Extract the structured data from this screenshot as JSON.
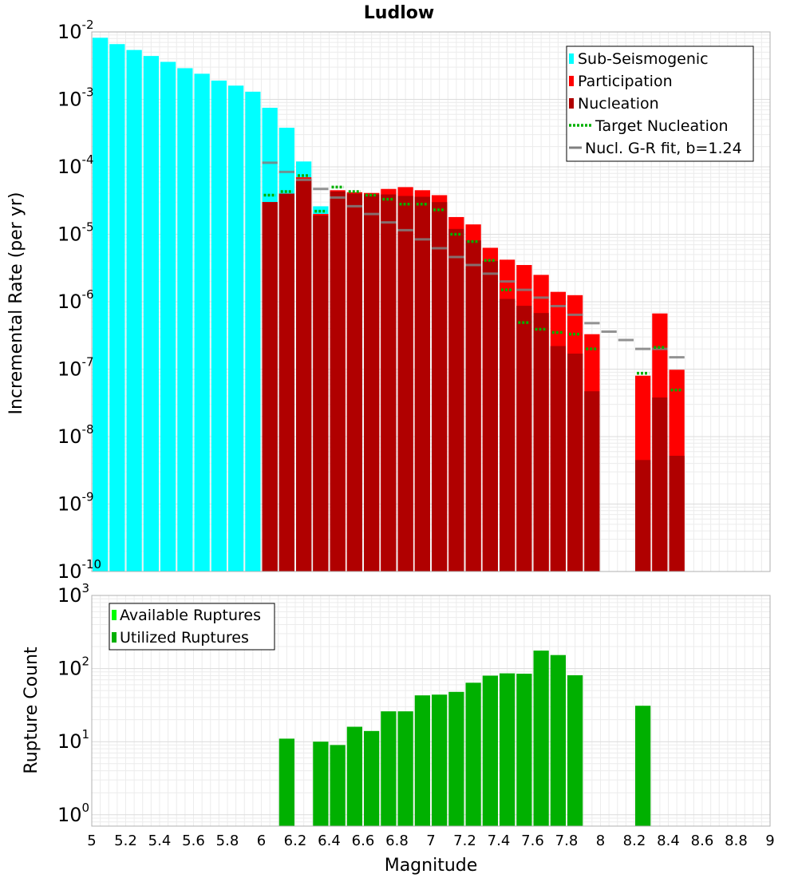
{
  "chart_data": [
    {
      "type": "bar",
      "title": "Ludlow",
      "xlabel": "",
      "ylabel": "Incremental Rate (per yr)",
      "yscale": "log",
      "xlim": [
        5,
        9
      ],
      "ylim": [
        1e-10,
        0.01
      ],
      "y_tick_labels": [
        {
          "base": "10",
          "exp": "-10"
        },
        {
          "base": "10",
          "exp": "-9"
        },
        {
          "base": "10",
          "exp": "-8"
        },
        {
          "base": "10",
          "exp": "-7"
        },
        {
          "base": "10",
          "exp": "-6"
        },
        {
          "base": "10",
          "exp": "-5"
        },
        {
          "base": "10",
          "exp": "-4"
        },
        {
          "base": "10",
          "exp": "-3"
        },
        {
          "base": "10",
          "exp": "-2"
        }
      ],
      "grid": true,
      "legend_position": "top-right",
      "legend": [
        {
          "label": "Sub-Seismogenic",
          "color": "#00ffff",
          "style": "box"
        },
        {
          "label": "Participation",
          "color": "#ff0000",
          "style": "box"
        },
        {
          "label": "Nucleation",
          "color": "#b00000",
          "style": "box"
        },
        {
          "label": "Target Nucleation",
          "color": "#00b000",
          "style": "dotted"
        },
        {
          "label": "Nucl. G-R fit, b=1.24",
          "color": "#808080",
          "style": "line"
        }
      ],
      "sub_seismogenic": {
        "x": [
          5.05,
          5.15,
          5.25,
          5.35,
          5.45,
          5.55,
          5.65,
          5.75,
          5.85,
          5.95,
          6.05,
          6.15,
          6.25,
          6.35
        ],
        "values": [
          0.0082,
          0.0066,
          0.0054,
          0.0044,
          0.0036,
          0.0029,
          0.0024,
          0.0019,
          0.0016,
          0.0013,
          0.00075,
          0.00038,
          0.00012,
          2.6e-05
        ]
      },
      "participation": {
        "x": [
          6.05,
          6.15,
          6.25,
          6.35,
          6.45,
          6.55,
          6.65,
          6.75,
          6.85,
          6.95,
          7.05,
          7.15,
          7.25,
          7.35,
          7.45,
          7.55,
          7.65,
          7.75,
          7.85,
          7.95,
          8.25,
          8.35,
          8.45
        ],
        "values": [
          3e-05,
          4e-05,
          7e-05,
          2e-05,
          4.5e-05,
          4.2e-05,
          4.1e-05,
          4.7e-05,
          5e-05,
          4.5e-05,
          3.8e-05,
          1.8e-05,
          1.4e-05,
          6.3e-06,
          4.2e-06,
          3.5e-06,
          2.5e-06,
          1.4e-06,
          1.25e-06,
          3.3e-07,
          8e-08,
          6.7e-07,
          9.8e-08
        ]
      },
      "nucleation": {
        "x": [
          6.05,
          6.15,
          6.25,
          6.35,
          6.45,
          6.55,
          6.65,
          6.75,
          6.85,
          6.95,
          7.05,
          7.15,
          7.25,
          7.35,
          7.45,
          7.55,
          7.65,
          7.75,
          7.85,
          7.95,
          8.25,
          8.35,
          8.45
        ],
        "values": [
          3e-05,
          4e-05,
          6.5e-05,
          1.9e-05,
          4.3e-05,
          4e-05,
          3.9e-05,
          3.9e-05,
          3.7e-05,
          3.6e-05,
          3e-05,
          1.2e-05,
          8.1e-06,
          4e-06,
          1.1e-06,
          8.7e-07,
          6.8e-07,
          2.2e-07,
          1.7e-07,
          4.7e-08,
          4.5e-09,
          3.8e-08,
          5.2e-09
        ]
      },
      "target_nucleation": {
        "x": [
          6.05,
          6.15,
          6.25,
          6.35,
          6.45,
          6.55,
          6.65,
          6.75,
          6.85,
          6.95,
          7.05,
          7.15,
          7.25,
          7.35,
          7.45,
          7.55,
          7.65,
          7.75,
          7.85,
          7.95,
          8.25,
          8.35,
          8.45
        ],
        "values": [
          3.8e-05,
          4.3e-05,
          7.4e-05,
          2.2e-05,
          5e-05,
          4.3e-05,
          3.8e-05,
          3.3e-05,
          2.8e-05,
          2.8e-05,
          2.3e-05,
          1e-05,
          7.8e-06,
          4.1e-06,
          1.5e-06,
          4.9e-07,
          3.9e-07,
          3.5e-07,
          3.3e-07,
          2e-07,
          8.7e-08,
          2.1e-07,
          4.9e-08
        ]
      },
      "gr_fit": {
        "x": [
          6.05,
          6.15,
          6.25,
          6.35,
          6.45,
          6.55,
          6.65,
          6.75,
          6.85,
          6.95,
          7.05,
          7.15,
          7.25,
          7.35,
          7.45,
          7.55,
          7.65,
          7.75,
          7.85,
          7.95,
          8.05,
          8.15,
          8.25,
          8.35,
          8.45
        ],
        "values": [
          0.000115,
          8.4e-05,
          6.4e-05,
          4.7e-05,
          3.5e-05,
          2.6e-05,
          2e-05,
          1.5e-05,
          1.15e-05,
          8.4e-06,
          6.2e-06,
          4.6e-06,
          3.5e-06,
          2.6e-06,
          2e-06,
          1.5e-06,
          1.15e-06,
          8.6e-07,
          6.4e-07,
          4.8e-07,
          3.6e-07,
          2.7e-07,
          2e-07,
          2e-07,
          1.5e-07
        ]
      }
    },
    {
      "type": "bar",
      "title": "",
      "xlabel": "Magnitude",
      "ylabel": "Rupture Count",
      "yscale": "log",
      "xlim": [
        5,
        9
      ],
      "ylim": [
        0.7,
        1000
      ],
      "x_ticks": [
        "5",
        "5.2",
        "5.4",
        "5.6",
        "5.8",
        "6",
        "6.2",
        "6.4",
        "6.6",
        "6.8",
        "7",
        "7.2",
        "7.4",
        "7.6",
        "7.8",
        "8",
        "8.2",
        "8.4",
        "8.6",
        "8.8",
        "9"
      ],
      "y_tick_labels": [
        {
          "base": "10",
          "exp": "0"
        },
        {
          "base": "10",
          "exp": "1"
        },
        {
          "base": "10",
          "exp": "2"
        },
        {
          "base": "10",
          "exp": "3"
        }
      ],
      "grid": true,
      "legend_position": "top-left",
      "legend": [
        {
          "label": "Available Ruptures",
          "color": "#00ff00",
          "style": "box"
        },
        {
          "label": "Utilized Ruptures",
          "color": "#00b000",
          "style": "box"
        }
      ],
      "utilized": {
        "x": [
          6.15,
          6.35,
          6.45,
          6.55,
          6.65,
          6.75,
          6.85,
          6.95,
          7.05,
          7.15,
          7.25,
          7.35,
          7.45,
          7.55,
          7.65,
          7.75,
          7.85,
          8.25
        ],
        "values": [
          11,
          10,
          9,
          16,
          14,
          26,
          26,
          43,
          44,
          48,
          64,
          80,
          86,
          85,
          176,
          153,
          81,
          31
        ]
      }
    }
  ]
}
